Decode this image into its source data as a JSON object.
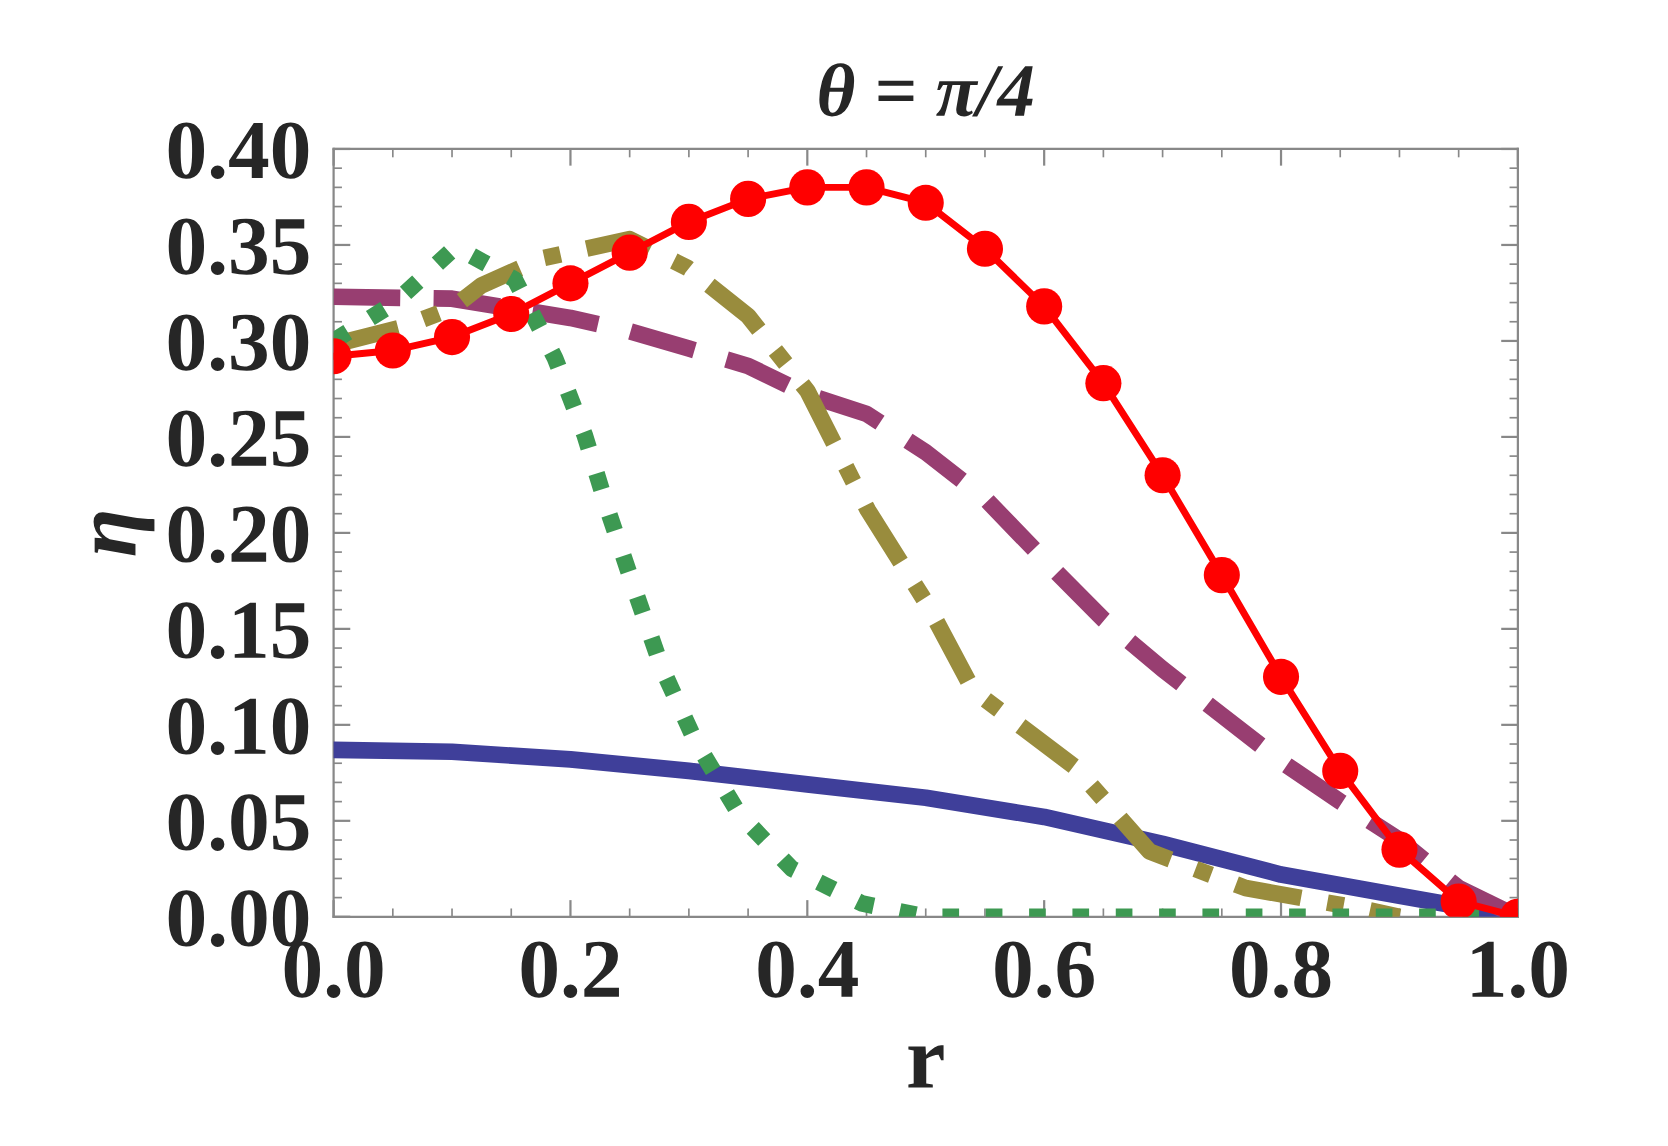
{
  "chart_data": {
    "type": "line",
    "title": "θ = π/4",
    "xlabel": "r",
    "ylabel": "η",
    "xlim": [
      0,
      1
    ],
    "ylim": [
      0,
      0.4
    ],
    "xticks": [
      {
        "value": 0,
        "label": "0.0"
      },
      {
        "value": 0.2,
        "label": "0.2"
      },
      {
        "value": 0.4,
        "label": "0.4"
      },
      {
        "value": 0.6,
        "label": "0.6"
      },
      {
        "value": 0.8,
        "label": "0.8"
      },
      {
        "value": 1,
        "label": "1.0"
      }
    ],
    "yticks": [
      {
        "value": 0,
        "label": "0.00"
      },
      {
        "value": 0.05,
        "label": "0.05"
      },
      {
        "value": 0.1,
        "label": "0.10"
      },
      {
        "value": 0.15,
        "label": "0.15"
      },
      {
        "value": 0.2,
        "label": "0.20"
      },
      {
        "value": 0.25,
        "label": "0.25"
      },
      {
        "value": 0.3,
        "label": "0.30"
      },
      {
        "value": 0.35,
        "label": "0.35"
      },
      {
        "value": 0.4,
        "label": "0.40"
      }
    ],
    "grid": false,
    "legend": false,
    "series": [
      {
        "color": "#3f3f9a",
        "line_style": "solid",
        "marker": "none",
        "x": [
          0,
          0.1,
          0.2,
          0.3,
          0.4,
          0.5,
          0.6,
          0.7,
          0.8,
          0.9,
          1.0
        ],
        "values": [
          0.087,
          0.086,
          0.082,
          0.076,
          0.069,
          0.062,
          0.052,
          0.038,
          0.022,
          0.011,
          0
        ]
      },
      {
        "color": "#983e71",
        "line_style": "dashed",
        "marker": "none",
        "x": [
          0,
          0.1,
          0.2,
          0.25,
          0.3,
          0.35,
          0.4,
          0.45,
          0.5,
          0.55,
          0.6,
          0.65,
          0.7,
          0.75,
          0.8,
          0.85,
          0.9,
          0.95,
          1.0
        ],
        "values": [
          0.323,
          0.322,
          0.312,
          0.305,
          0.296,
          0.287,
          0.272,
          0.262,
          0.242,
          0.218,
          0.186,
          0.155,
          0.129,
          0.105,
          0.081,
          0.06,
          0.04,
          0.015,
          0
        ]
      },
      {
        "color": "#998c3d",
        "line_style": "dashdot",
        "marker": "none",
        "x": [
          0,
          0.057,
          0.1,
          0.125,
          0.176,
          0.25,
          0.299,
          0.35,
          0.4,
          0.451,
          0.502,
          0.54,
          0.626,
          0.689,
          0.77,
          0.87,
          0.9
        ],
        "values": [
          0.298,
          0.307,
          0.317,
          0.329,
          0.343,
          0.353,
          0.338,
          0.313,
          0.274,
          0.212,
          0.162,
          0.118,
          0.078,
          0.034,
          0.015,
          0.004,
          0
        ]
      },
      {
        "color": "#3d9952",
        "line_style": "dotted",
        "marker": "none",
        "x": [
          0,
          0.052,
          0.103,
          0.153,
          0.187,
          0.212,
          0.232,
          0.255,
          0.277,
          0.305,
          0.342,
          0.387,
          0.446,
          0.5,
          0.6,
          0.7,
          0.8,
          0.9,
          1.0
        ],
        "values": [
          0.3,
          0.32,
          0.349,
          0.332,
          0.291,
          0.251,
          0.211,
          0.169,
          0.13,
          0.092,
          0.054,
          0.025,
          0.007,
          0,
          0,
          0,
          0,
          0,
          0
        ]
      },
      {
        "color": "#ff0000",
        "line_style": "solid",
        "marker": "circle",
        "x": [
          0,
          0.05,
          0.1,
          0.15,
          0.2,
          0.25,
          0.3,
          0.35,
          0.4,
          0.45,
          0.5,
          0.55,
          0.6,
          0.65,
          0.7,
          0.75,
          0.8,
          0.85,
          0.9,
          0.95,
          1.0
        ],
        "values": [
          0.292,
          0.295,
          0.302,
          0.314,
          0.33,
          0.346,
          0.362,
          0.374,
          0.38,
          0.38,
          0.372,
          0.348,
          0.318,
          0.278,
          0.23,
          0.178,
          0.125,
          0.076,
          0.035,
          0.008,
          0
        ]
      }
    ]
  }
}
